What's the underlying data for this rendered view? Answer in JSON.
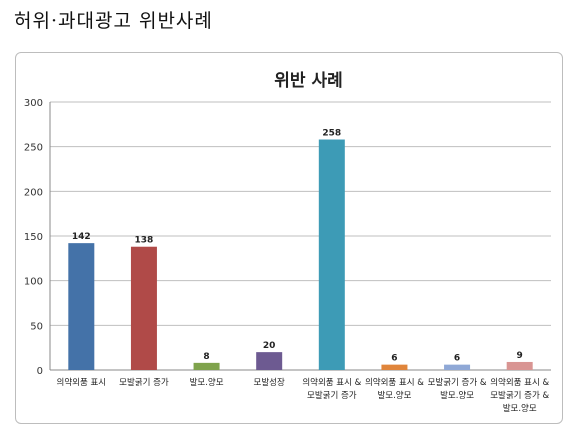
{
  "page": {
    "heading": "허위·과대광고 위반사례"
  },
  "chart_data": {
    "type": "bar",
    "title": "위반 사례",
    "categories": [
      [
        "의약외품 표시"
      ],
      [
        "모발굵기 증가"
      ],
      [
        "발모.양모"
      ],
      [
        "모발성장"
      ],
      [
        "의약외품 표시 &",
        "모발굵기 증가"
      ],
      [
        "의약외품 표시 &",
        "발모.양모"
      ],
      [
        "모발굵기 증가 &",
        "발모.양모"
      ],
      [
        "의약외품 표시 &",
        "모발굵기 증가 &",
        "발모.양모"
      ]
    ],
    "values": [
      142,
      138,
      8,
      20,
      258,
      6,
      6,
      9
    ],
    "colors": [
      "#4472a8",
      "#b04a48",
      "#7fa34c",
      "#6d5a91",
      "#3d9bb6",
      "#e0853b",
      "#8fa8d6",
      "#d99593"
    ],
    "ylim": [
      0,
      300
    ],
    "yticks": [
      0,
      50,
      100,
      150,
      200,
      250,
      300
    ],
    "grid": true,
    "xlabel": "",
    "ylabel": ""
  }
}
